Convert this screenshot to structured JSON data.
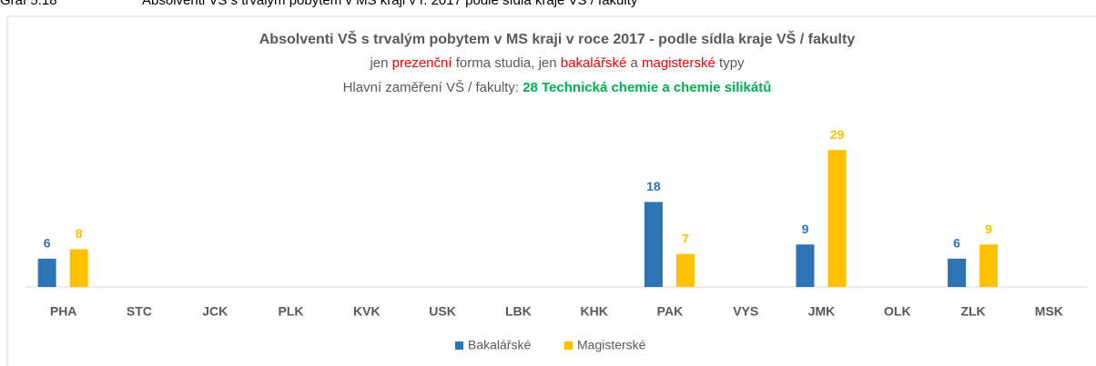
{
  "chart_data": {
    "type": "bar",
    "figure_label": "Graf 5.18",
    "figure_caption": "Absolventi VŠ s trvalým pobytem v MS kraji v r. 2017 podle sídla kraje VŠ / fakulty",
    "title": "Absolventi VŠ s trvalým pobytem v MS kraji v roce 2017 - podle sídla kraje VŠ / fakulty",
    "subtitle": [
      "jen",
      "prezenční",
      "forma studia, jen",
      "bakalářské",
      "a",
      "magisterské",
      "typy"
    ],
    "subtitle2": [
      "Hlavní zaměření VŠ / fakulty:",
      "28 Technická chemie a chemie silikátů"
    ],
    "categories": [
      "PHA",
      "STC",
      "JCK",
      "PLK",
      "KVK",
      "USK",
      "LBK",
      "KHK",
      "PAK",
      "VYS",
      "JMK",
      "OLK",
      "ZLK",
      "MSK"
    ],
    "series": [
      {
        "name": "Bakalářské",
        "color": "#2e75b6",
        "values": [
          6,
          null,
          null,
          null,
          null,
          null,
          null,
          null,
          18,
          null,
          9,
          null,
          6,
          null
        ]
      },
      {
        "name": "Magisterské",
        "color": "#ffc000",
        "values": [
          8,
          null,
          null,
          null,
          null,
          null,
          null,
          null,
          7,
          null,
          29,
          null,
          9,
          null
        ]
      }
    ],
    "ylim": [
      0,
      30
    ]
  }
}
